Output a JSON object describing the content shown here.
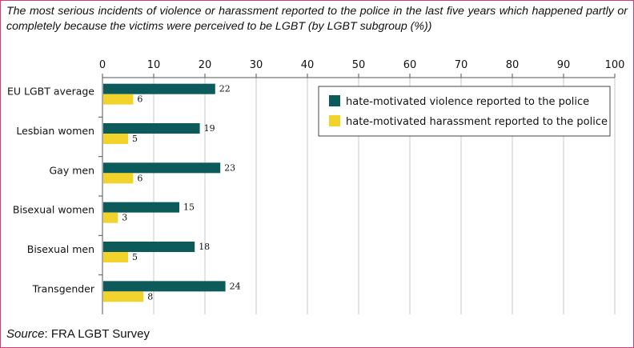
{
  "title": "The most serious incidents of violence or harassment reported to the police in the last five years which happened partly or completely because the victims were perceived to be LGBT (by LGBT subgroup (%))",
  "source_prefix": "Source",
  "source_text": ": FRA LGBT Survey",
  "colors": {
    "violence": "#0c5a5a",
    "harassment": "#f2d32b",
    "grid": "#c8c8c8",
    "axis": "#555555",
    "border": "#d63a7a"
  },
  "chart_data": {
    "type": "bar",
    "orientation": "horizontal",
    "categories": [
      "EU LGBT average",
      "Lesbian women",
      "Gay men",
      "Bisexual women",
      "Bisexual men",
      "Transgender"
    ],
    "series": [
      {
        "name": "hate-motivated violence reported to the police",
        "values": [
          22,
          19,
          23,
          15,
          18,
          24
        ]
      },
      {
        "name": "hate-motivated harassment reported to the police",
        "values": [
          6,
          5,
          6,
          3,
          5,
          8
        ]
      }
    ],
    "xlim": [
      0,
      100
    ],
    "xticks": [
      0,
      10,
      20,
      30,
      40,
      50,
      60,
      70,
      80,
      90,
      100
    ],
    "x_axis_position": "top",
    "grid": true,
    "legend_position": "top-right"
  }
}
